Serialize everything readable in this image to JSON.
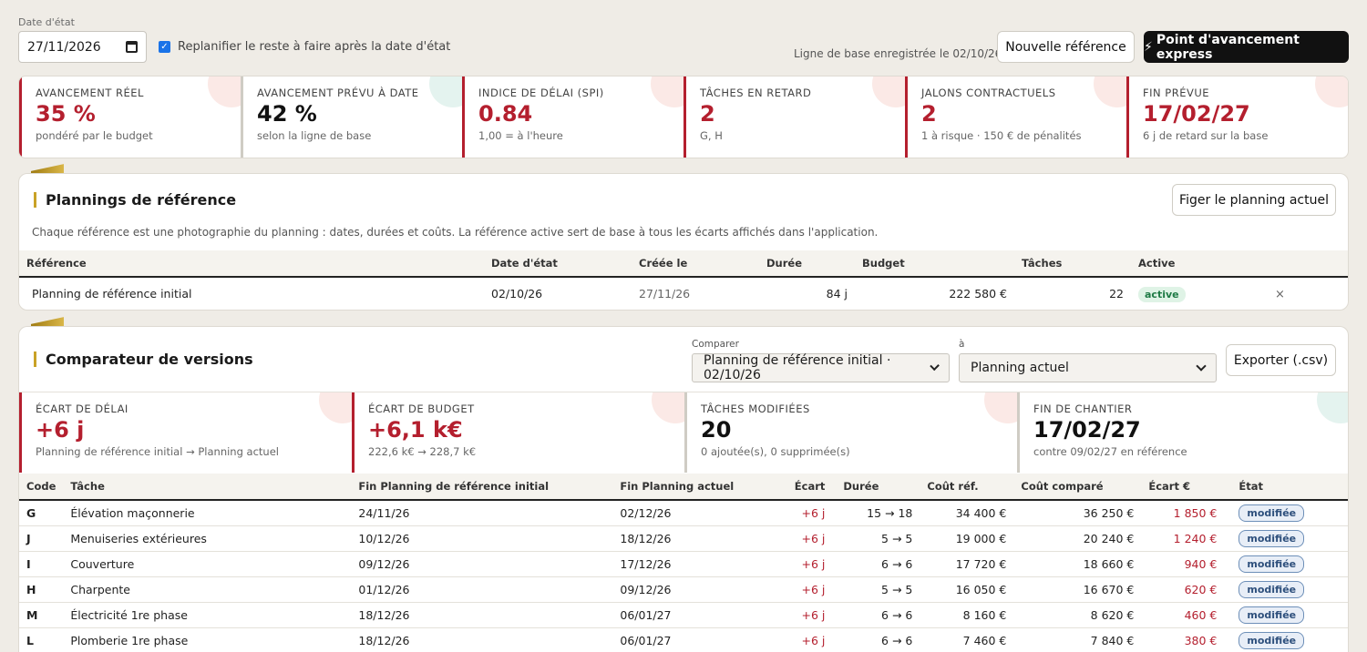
{
  "topbar": {
    "date_label": "Date d'état",
    "date_value": "27/11/2026",
    "replan_label": "Replanifier le reste à faire après la date d'état",
    "baseline_note": "Ligne de base enregistrée le 02/10/26",
    "new_ref_label": "Nouvelle référence",
    "express_label": "Point d'avancement express",
    "express_glyph": "⚡"
  },
  "kpis": [
    {
      "title": "AVANCEMENT RÉEL",
      "value": "35 %",
      "sub": "pondéré par le budget"
    },
    {
      "title": "AVANCEMENT PRÉVU À DATE",
      "value": "42 %",
      "sub": "selon la ligne de base"
    },
    {
      "title": "INDICE DE DÉLAI (SPI)",
      "value": "0.84",
      "sub": "1,00 = à l'heure"
    },
    {
      "title": "TÂCHES EN RETARD",
      "value": "2",
      "sub": "G, H"
    },
    {
      "title": "JALONS CONTRACTUELS",
      "value": "2",
      "sub": "1 à risque · 150 € de pénalités"
    },
    {
      "title": "FIN PRÉVUE",
      "value": "17/02/27",
      "sub": "6 j de retard sur la base"
    }
  ],
  "references": {
    "title": "Plannings de référence",
    "freeze_label": "Figer le planning actuel",
    "description": "Chaque référence est une photographie du planning : dates, durées et coûts. La référence active sert de base à tous les écarts affichés dans l'application.",
    "headers": [
      "Référence",
      "Date d'état",
      "Créée le",
      "Durée",
      "Budget",
      "Tâches",
      "Active"
    ],
    "rows": [
      {
        "name": "Planning de référence initial",
        "date": "02/10/26",
        "created": "27/11/26",
        "duration": "84 j",
        "budget": "222 580 €",
        "tasks": "22",
        "active": "active",
        "remove": "×"
      }
    ]
  },
  "comparator": {
    "title": "Comparateur de versions",
    "compare_label": "Comparer",
    "compare_value": "Planning de référence initial · 02/10/26",
    "to_label": "à",
    "to_value": "Planning actuel",
    "export_label": "Exporter (.csv)",
    "kpis": [
      {
        "title": "ÉCART DE DÉLAI",
        "value": "+6 j",
        "sub": "Planning de référence initial → Planning actuel"
      },
      {
        "title": "ÉCART DE BUDGET",
        "value": "+6,1 k€",
        "sub": "222,6 k€ → 228,7 k€"
      },
      {
        "title": "TÂCHES MODIFIÉES",
        "value": "20",
        "sub": "0 ajoutée(s), 0 supprimée(s)"
      },
      {
        "title": "FIN DE CHANTIER",
        "value": "17/02/27",
        "sub": "contre 09/02/27 en référence"
      }
    ],
    "headers": [
      "Code",
      "Tâche",
      "Fin Planning de référence initial",
      "Fin Planning actuel",
      "Écart",
      "Durée",
      "Coût réf.",
      "Coût comparé",
      "Écart €",
      "État"
    ],
    "rows": [
      {
        "code": "G",
        "task": "Élévation maçonnerie",
        "fin_ref": "24/11/26",
        "fin_cur": "02/12/26",
        "ecart": "+6 j",
        "duree": "15 → 18",
        "cout_ref": "34 400 €",
        "cout_cmp": "36 250 €",
        "ecart_eur": "1 850 €",
        "etat": "modifiée"
      },
      {
        "code": "J",
        "task": "Menuiseries extérieures",
        "fin_ref": "10/12/26",
        "fin_cur": "18/12/26",
        "ecart": "+6 j",
        "duree": "5 → 5",
        "cout_ref": "19 000 €",
        "cout_cmp": "20 240 €",
        "ecart_eur": "1 240 €",
        "etat": "modifiée"
      },
      {
        "code": "I",
        "task": "Couverture",
        "fin_ref": "09/12/26",
        "fin_cur": "17/12/26",
        "ecart": "+6 j",
        "duree": "6 → 6",
        "cout_ref": "17 720 €",
        "cout_cmp": "18 660 €",
        "ecart_eur": "940 €",
        "etat": "modifiée"
      },
      {
        "code": "H",
        "task": "Charpente",
        "fin_ref": "01/12/26",
        "fin_cur": "09/12/26",
        "ecart": "+6 j",
        "duree": "5 → 5",
        "cout_ref": "16 050 €",
        "cout_cmp": "16 670 €",
        "ecart_eur": "620 €",
        "etat": "modifiée"
      },
      {
        "code": "M",
        "task": "Électricité 1re phase",
        "fin_ref": "18/12/26",
        "fin_cur": "06/01/27",
        "ecart": "+6 j",
        "duree": "6 → 6",
        "cout_ref": "8 160 €",
        "cout_cmp": "8 620 €",
        "ecart_eur": "460 €",
        "etat": "modifiée"
      },
      {
        "code": "L",
        "task": "Plomberie 1re phase",
        "fin_ref": "18/12/26",
        "fin_cur": "06/01/27",
        "ecart": "+6 j",
        "duree": "6 → 6",
        "cout_ref": "7 460 €",
        "cout_cmp": "7 840 €",
        "ecart_eur": "380 €",
        "etat": "modifiée"
      }
    ]
  },
  "colors": {
    "accent_red": "#b41f2e",
    "gold": "#c9a227",
    "active_green": "#1e7a45",
    "modified_blue": "#2d4f7c"
  }
}
